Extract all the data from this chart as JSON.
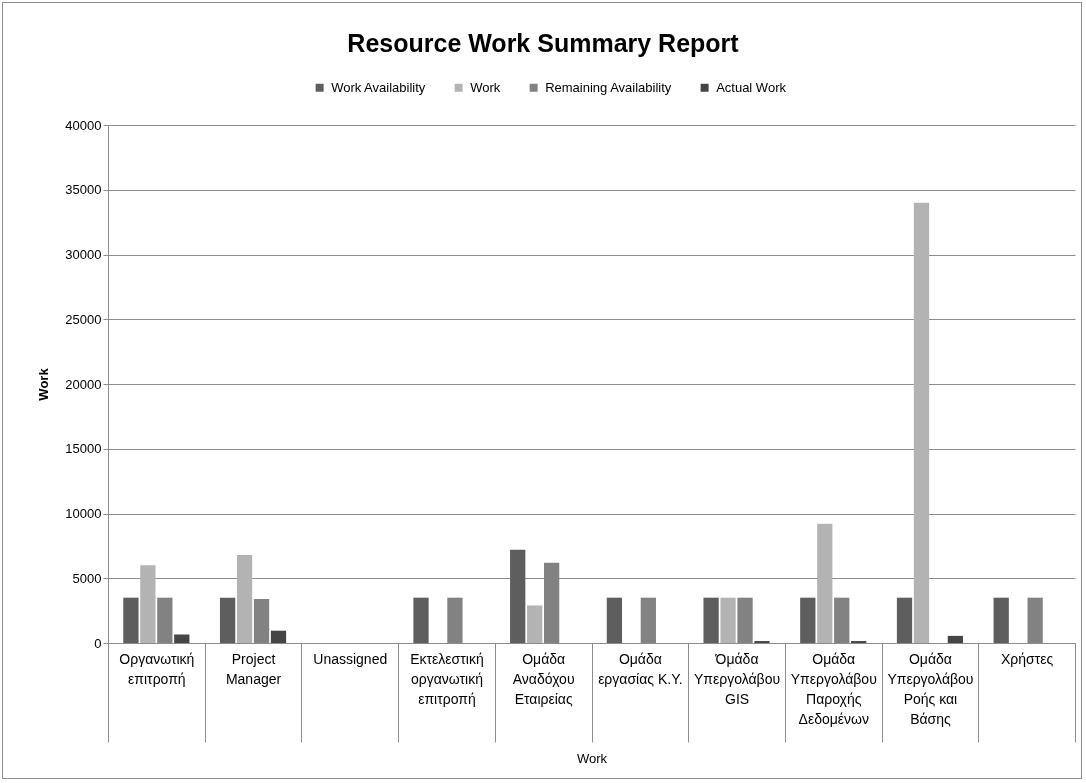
{
  "chart_data": {
    "type": "bar",
    "title": "Resource Work Summary Report",
    "xlabel": "Work",
    "ylabel": "Work",
    "categories": [
      "Οργανωτική επιτροπή",
      "Project Manager",
      "Unassigned",
      "Εκτελεστική οργανωτική επιτροπή",
      "Ομάδα Αναδόχου Εταιρείας",
      "Ομάδα εργασίας Κ.Υ.",
      "Όμάδα Υπεργολάβου GIS",
      "Ομάδα Υπεργολάβου Παροχής Δεδομένων",
      "Ομάδα Υπεργολάβου Ροής και Βάσης",
      "Χρήστες"
    ],
    "series": [
      {
        "name": "Work Availability",
        "color": "#5e5e5e",
        "values": [
          3500,
          3500,
          0,
          3500,
          7200,
          3500,
          3500,
          3500,
          3500,
          3500
        ]
      },
      {
        "name": "Work",
        "color": "#b3b3b3",
        "values": [
          6000,
          6800,
          0,
          0,
          2900,
          0,
          3500,
          9200,
          34000,
          0
        ]
      },
      {
        "name": "Remaining Availability",
        "color": "#828282",
        "values": [
          3500,
          3400,
          0,
          3500,
          6200,
          3500,
          3500,
          3500,
          0,
          3500
        ]
      },
      {
        "name": "Actual Work",
        "color": "#454545",
        "values": [
          650,
          950,
          0,
          0,
          0,
          0,
          150,
          150,
          550,
          0
        ]
      }
    ],
    "ylim": [
      0,
      40000
    ],
    "yticks": [
      0,
      5000,
      10000,
      15000,
      20000,
      25000,
      30000,
      35000,
      40000
    ],
    "grid": "y",
    "legend": "top"
  }
}
